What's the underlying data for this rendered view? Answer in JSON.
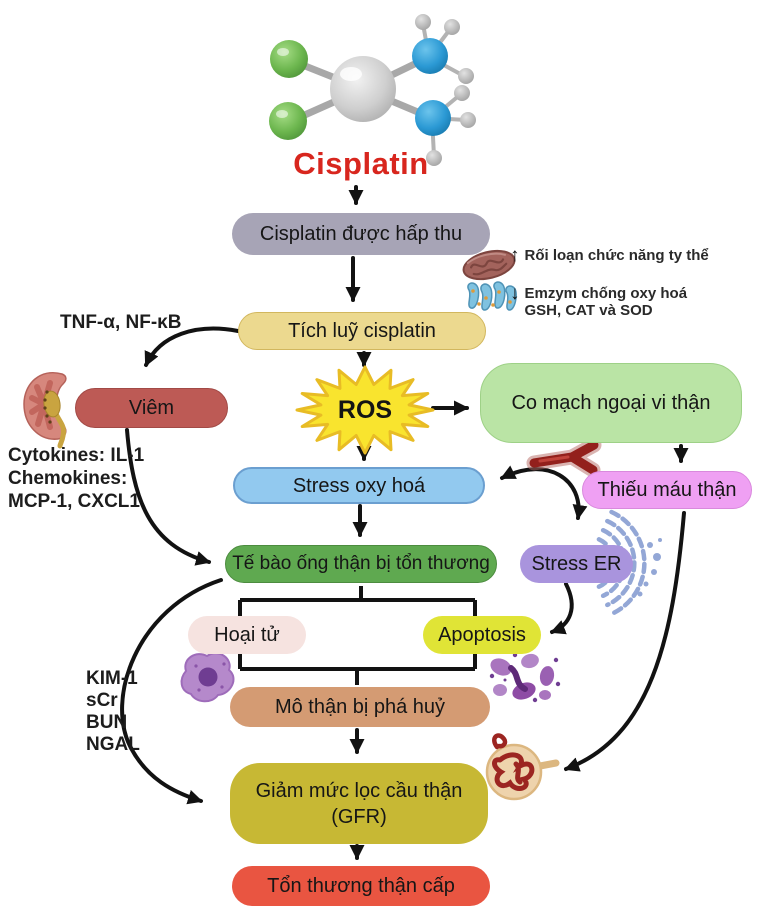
{
  "title": "Cisplatin",
  "nodes": {
    "absorbed": "Cisplatin được hấp thu",
    "accumulation": "Tích luỹ cisplatin",
    "ros": "ROS",
    "inflammation": "Viêm",
    "vasoconstriction": "Co mạch ngoại vi thận",
    "ischemia": "Thiếu máu thận",
    "oxidative_stress": "Stress oxy hoá",
    "tubular_injury": "Tế bào ống thận bị tổn thương",
    "er_stress": "Stress ER",
    "necrosis": "Hoại tử",
    "apoptosis": "Apoptosis",
    "tissue_destruction": "Mô thận bị phá huỷ",
    "gfr": "Giảm mức lọc cầu thận\n(GFR)",
    "aki": "Tổn thương thận cấp"
  },
  "annotations": {
    "tnf": "TNF-α, NF-κB",
    "cytokines": "Cytokines: IL-1\nChemokines:\nMCP-1, CXCL1",
    "biomarkers": "KIM-1\nsCr\nBUN\nNGAL",
    "mito": {
      "arrow": "↑",
      "text": "Rối loạn chức năng ty thể"
    },
    "antioxidant": {
      "arrow": "↓",
      "text": "Emzym chống oxy hoá\nGSH, CAT và SOD"
    }
  },
  "colors": {
    "absorbed": "#a7a4b6",
    "accumulation": "#ecd98f",
    "inflammation": "#bd5a55",
    "ros_fill": "#f9e42e",
    "vasoconstriction": "#bae4a5",
    "ischemia": "#efa0f3",
    "oxidative_stress": "#92c9ef",
    "tubular_injury": "#5fa950",
    "er_stress": "#a994dd",
    "necrosis": "#f6e3e0",
    "apoptosis": "#e0e436",
    "tissue_destruction": "#d49b73",
    "gfr": "#c7b834",
    "aki": "#e95541",
    "title": "#d8261e",
    "arrow": "#121212"
  }
}
